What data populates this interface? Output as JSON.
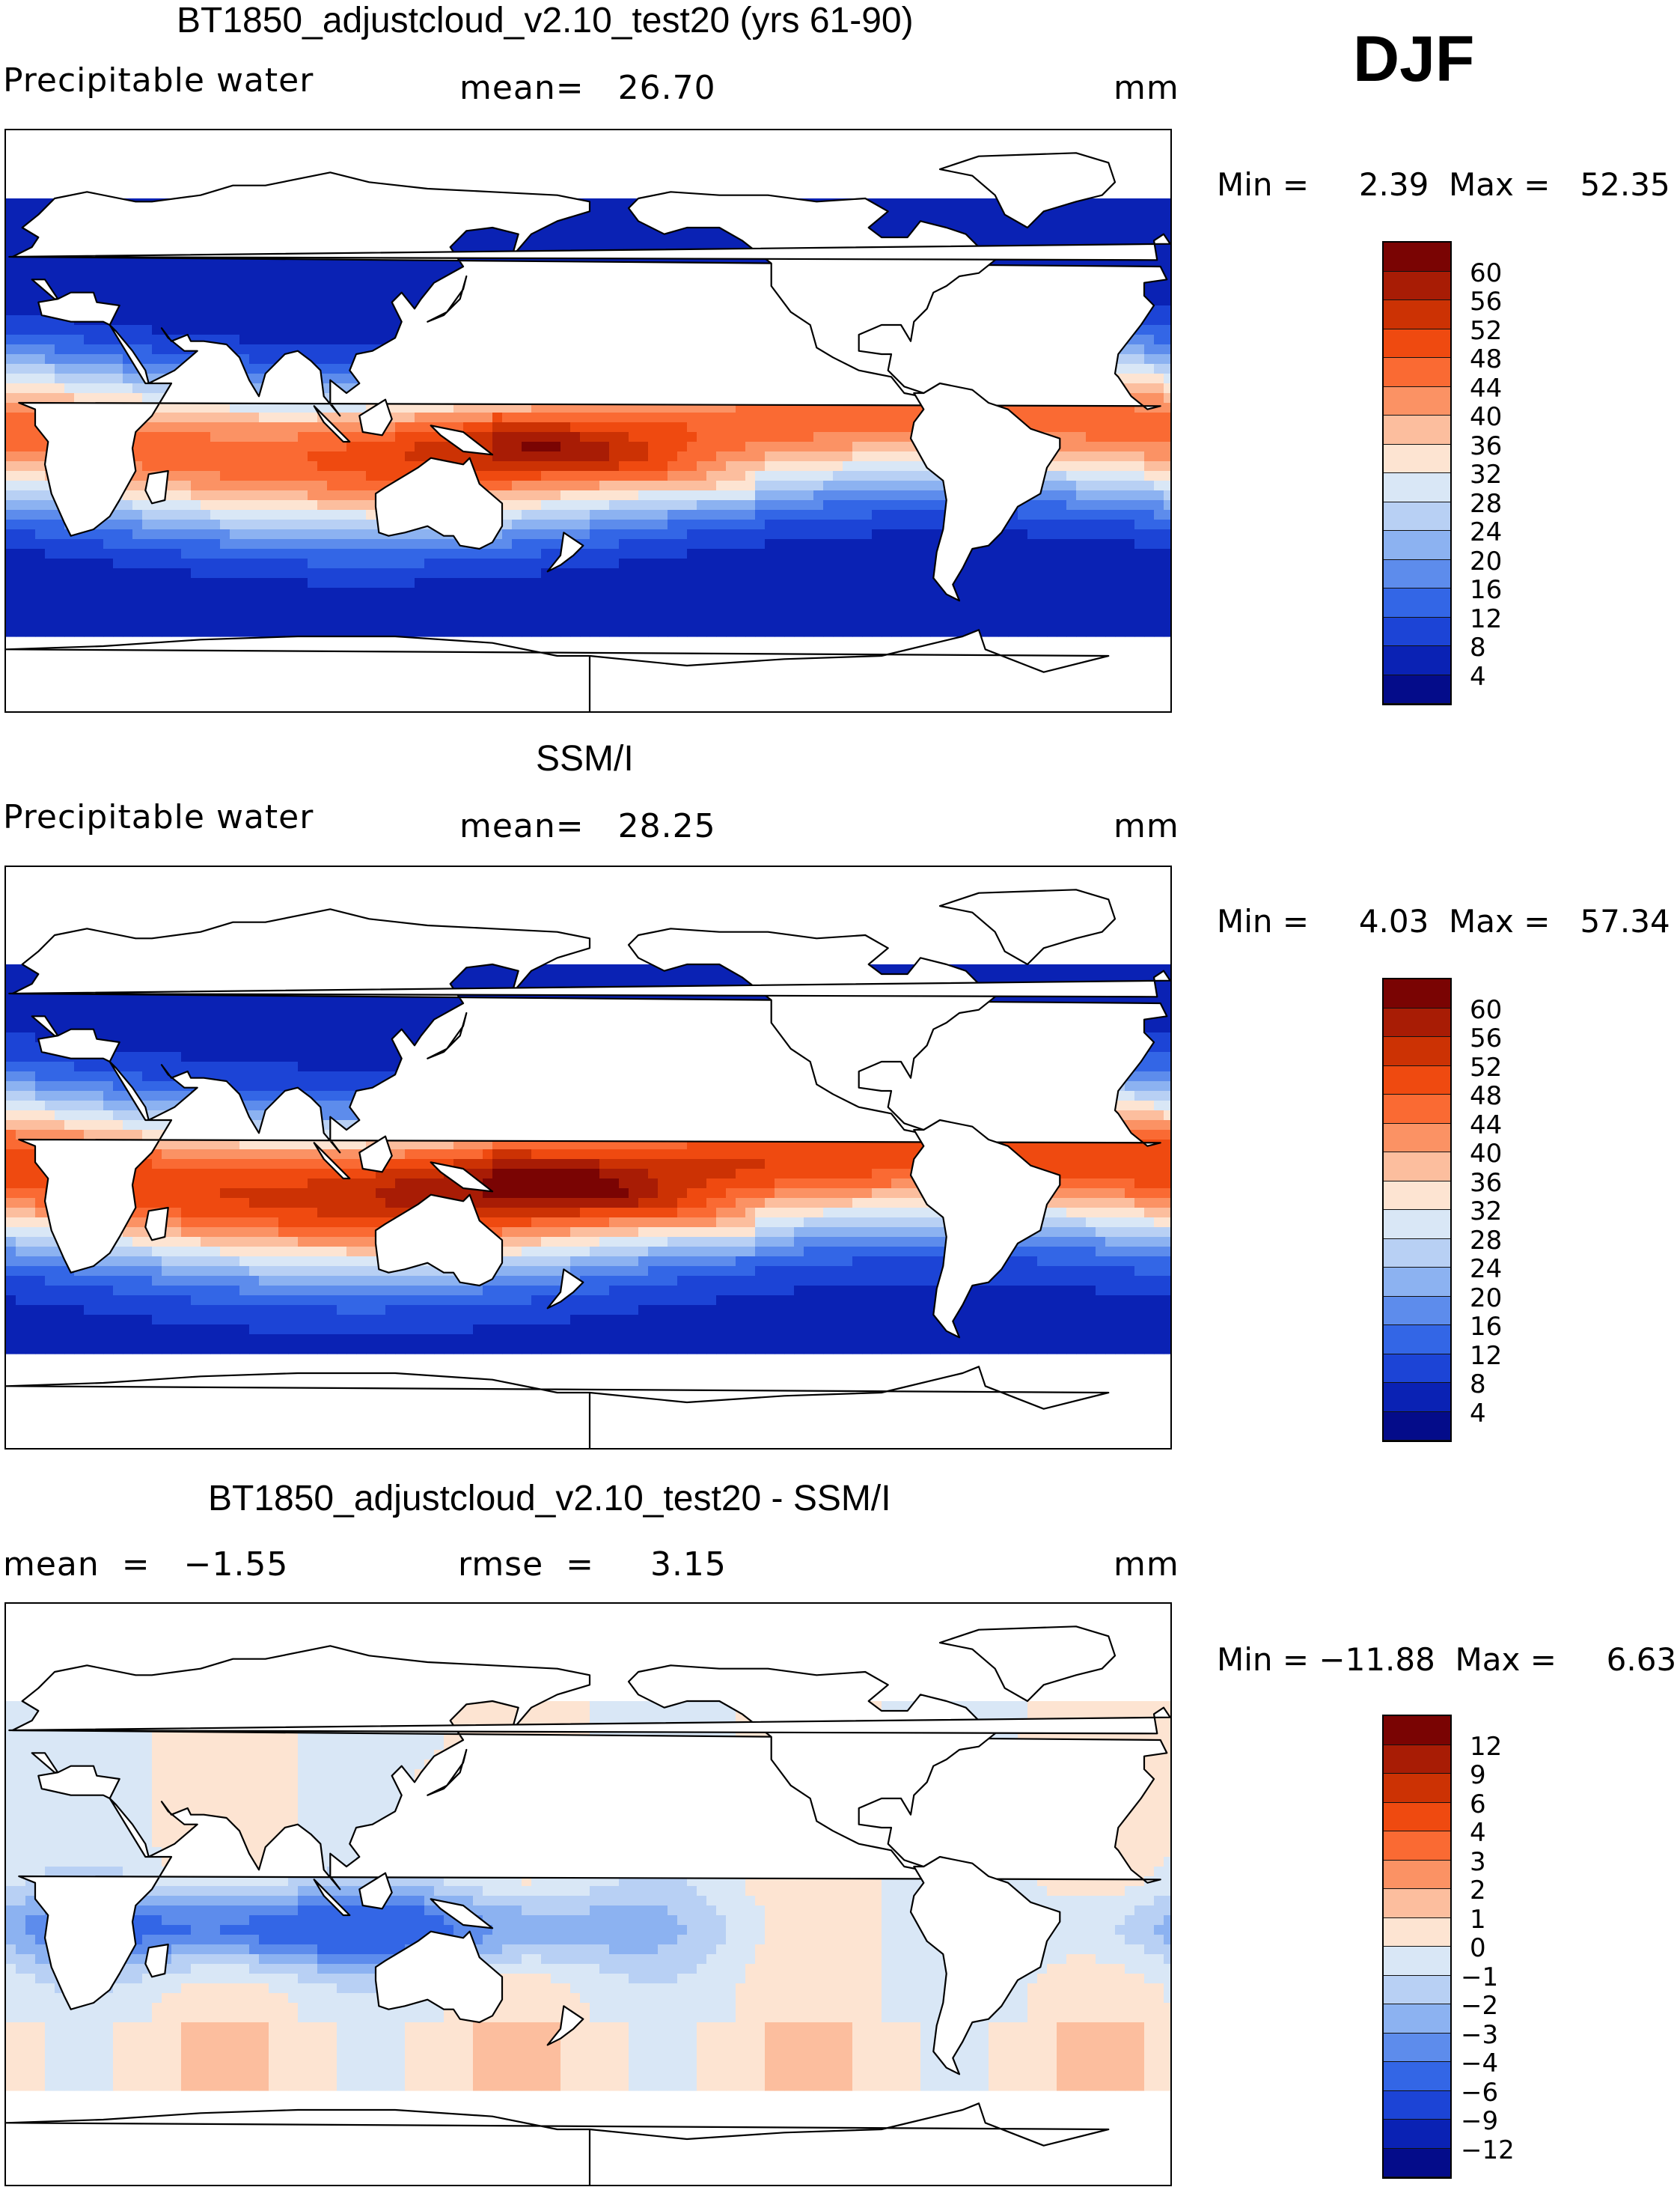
{
  "season": "DJF",
  "units": "mm",
  "panels": [
    {
      "title": "BT1850_adjustcloud_v2.10_test20 (yrs 61-90)",
      "variable": "Precipitable water",
      "stat1": "mean=   26.70",
      "stat2": "",
      "minmax": "Min =     2.39  Max =   52.35",
      "type": "model"
    },
    {
      "title": "SSM/I",
      "variable": "Precipitable water",
      "stat1": "mean=   28.25",
      "stat2": "",
      "minmax": "Min =     4.03  Max =   57.34",
      "type": "obs"
    },
    {
      "title": "BT1850_adjustcloud_v2.10_test20 - SSM/I",
      "variable": "",
      "stat1": "mean  =   −1.55",
      "stat2": "rmse  =     3.15",
      "minmax": "Min = −11.88  Max =     6.63",
      "type": "diff"
    }
  ],
  "colorbar_abs": {
    "labels": [
      "60",
      "56",
      "52",
      "48",
      "44",
      "40",
      "36",
      "32",
      "28",
      "24",
      "20",
      "16",
      "12",
      "8",
      "4"
    ],
    "colors": [
      "#7a0403",
      "#a81c05",
      "#cc3204",
      "#ef4a10",
      "#fa6a33",
      "#fb9264",
      "#fcbe9e",
      "#fde4d2",
      "#d9e7f6",
      "#b8d0f4",
      "#8cb2f1",
      "#5d8cec",
      "#3366e6",
      "#1c44d6",
      "#0a22b4",
      "#040c8a"
    ]
  },
  "colorbar_diff": {
    "labels": [
      "12",
      "9",
      "6",
      "4",
      "3",
      "2",
      "1",
      "0",
      "−1",
      "−2",
      "−3",
      "−4",
      "−6",
      "−9",
      "−12"
    ],
    "colors": [
      "#7a0403",
      "#a81c05",
      "#cc3204",
      "#ef4a10",
      "#fa6a33",
      "#fb9264",
      "#fcbe9e",
      "#fde4d2",
      "#d9e7f6",
      "#b8d0f4",
      "#8cb2f1",
      "#5d8cec",
      "#3366e6",
      "#1c44d6",
      "#0a22b4",
      "#040c8a"
    ]
  }
}
